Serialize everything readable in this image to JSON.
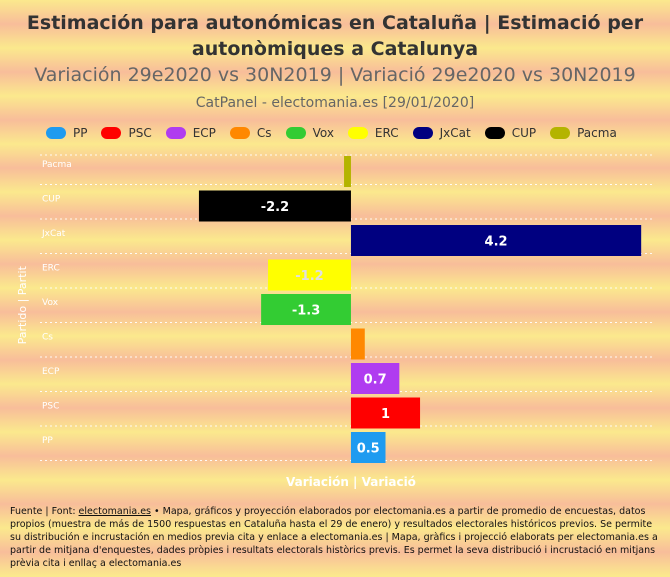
{
  "title": "Estimación para autonómicas en Cataluña | Estimació per autonòmiques a Catalunya",
  "subtitle": "Variación 29e2020 vs 30N2019 | Variació 29e2020 vs 30N2019",
  "source": "CatPanel - electomania.es [29/01/2020]",
  "chart_data": {
    "type": "bar",
    "orientation": "horizontal",
    "categories": [
      "Pacma",
      "CUP",
      "JxCat",
      "ERC",
      "Vox",
      "Cs",
      "ECP",
      "PSC",
      "PP"
    ],
    "values": [
      -0.1,
      -2.2,
      4.2,
      -1.2,
      -1.3,
      0.2,
      0.7,
      1,
      0.5
    ],
    "data_labels": [
      "",
      "-2.2",
      "4.2",
      "-1.2",
      "-1.3",
      "",
      "0.7",
      "1",
      "0.5"
    ],
    "colors": [
      "#b4b400",
      "#000000",
      "#000080",
      "#ffff00",
      "#33cc33",
      "#ff8800",
      "#b03cf0",
      "#ff0000",
      "#1e9bf0"
    ],
    "label_colors": [
      "#ffffff",
      "#ffffff",
      "#ffffff",
      "#e0e0e0",
      "#ffffff",
      "#ffffff",
      "#ffffff",
      "#ffffff",
      "#ffffff"
    ],
    "xlabel": "Variación | Variació",
    "ylabel": "Partido | Partit",
    "xlim": [
      -4.5,
      4.4
    ],
    "grid": true,
    "legend": [
      {
        "name": "PP",
        "color": "#1e9bf0"
      },
      {
        "name": "PSC",
        "color": "#ff0000"
      },
      {
        "name": "ECP",
        "color": "#b03cf0"
      },
      {
        "name": "Cs",
        "color": "#ff8800"
      },
      {
        "name": "Vox",
        "color": "#33cc33"
      },
      {
        "name": "ERC",
        "color": "#ffff00"
      },
      {
        "name": "JxCat",
        "color": "#000080"
      },
      {
        "name": "CUP",
        "color": "#000000"
      },
      {
        "name": "Pacma",
        "color": "#b4b400"
      }
    ],
    "legend_position": "top-left"
  },
  "footer": {
    "prefix": "Fuente | Font: ",
    "link": "electomania.es",
    "text": " • Mapa, gráficos y proyección elaborados por electomania.es a partir de promedio de encuestas, datos propios (muestra de más de 1500 respuestas en Cataluña hasta el 29 de enero) y resultados electorales históricos previos. Se permite su distribución e incrustación en medios previa cita y enlace a electomania.es | Mapa, gràfics i projecció elaborats per electomania.es a partir de mitjana d'enquestes, dades pròpies i resultats electorals històrics previs. Es permet la seva distribució i incrustació en mitjans prèvia cita i enllaç a electomania.es"
  }
}
